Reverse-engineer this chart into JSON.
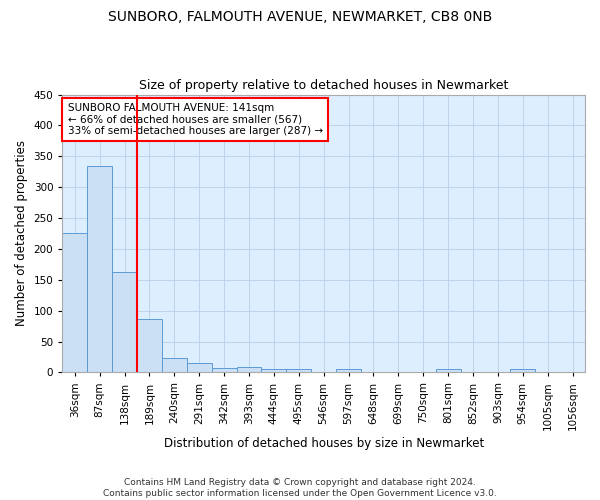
{
  "title1": "SUNBORO, FALMOUTH AVENUE, NEWMARKET, CB8 0NB",
  "title2": "Size of property relative to detached houses in Newmarket",
  "xlabel": "Distribution of detached houses by size in Newmarket",
  "ylabel": "Number of detached properties",
  "bin_labels": [
    "36sqm",
    "87sqm",
    "138sqm",
    "189sqm",
    "240sqm",
    "291sqm",
    "342sqm",
    "393sqm",
    "444sqm",
    "495sqm",
    "546sqm",
    "597sqm",
    "648sqm",
    "699sqm",
    "750sqm",
    "801sqm",
    "852sqm",
    "903sqm",
    "954sqm",
    "1005sqm",
    "1056sqm"
  ],
  "bar_heights": [
    225,
    335,
    163,
    87,
    23,
    16,
    7,
    8,
    5,
    5,
    0,
    5,
    0,
    0,
    0,
    5,
    0,
    0,
    5,
    0,
    0
  ],
  "bar_color": "#cce0f5",
  "bar_edge_color": "#5b9bd5",
  "grid_color": "#b8d0e8",
  "background_color": "#ddeeff",
  "red_line_x": 2.5,
  "annotation_text": "SUNBORO FALMOUTH AVENUE: 141sqm\n← 66% of detached houses are smaller (567)\n33% of semi-detached houses are larger (287) →",
  "annotation_box_color": "white",
  "annotation_border_color": "red",
  "ylim": [
    0,
    450
  ],
  "yticks": [
    0,
    50,
    100,
    150,
    200,
    250,
    300,
    350,
    400,
    450
  ],
  "footer_text": "Contains HM Land Registry data © Crown copyright and database right 2024.\nContains public sector information licensed under the Open Government Licence v3.0.",
  "title1_fontsize": 10,
  "title2_fontsize": 9,
  "xlabel_fontsize": 8.5,
  "ylabel_fontsize": 8.5,
  "footer_fontsize": 6.5,
  "annotation_fontsize": 7.5,
  "tick_fontsize": 7.5
}
